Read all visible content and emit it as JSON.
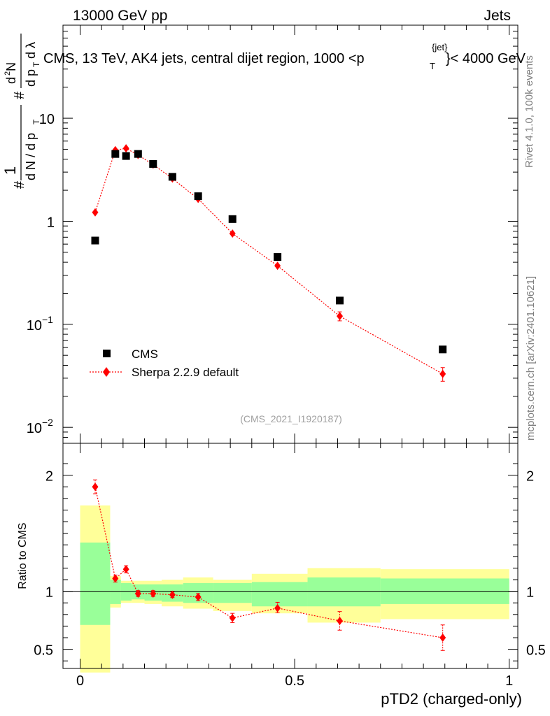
{
  "header": {
    "left_label": "13000 GeV pp",
    "right_label": "Jets",
    "title": "CMS, 13 TeV, AK4 jets, central dijet region, 1000 <p",
    "title_sup": "{jet}",
    "title_sub": "T",
    "title_tail": "}< 4000 GeV"
  },
  "side_labels": {
    "rivet": "Rivet 4.1.0,  100k events",
    "mcplots": "mcplots.cern.ch [arXiv:2401.10621]"
  },
  "watermark": "(CMS_2021_I1920187)",
  "axes": {
    "ylabel_main": "# 1/(dN/dpT) #d²N/(dpT dλ)",
    "ylabel_ratio": "Ratio to CMS",
    "xlabel": "pTD2 (charged-only)"
  },
  "legend": {
    "data": "CMS",
    "mc": "Sherpa 2.2.9 default"
  },
  "colors": {
    "mc": "#ff0000",
    "data": "#000000",
    "band_inner": "#99ff99",
    "band_outer": "#ffff99"
  },
  "chart_data": [
    {
      "type": "scatter",
      "panel": "main",
      "yscale": "log",
      "xlim": [
        -0.04,
        1.02
      ],
      "ylim": [
        0.007,
        80
      ],
      "yticks": [
        {
          "value": 0.01,
          "label": "10",
          "sup": "−2"
        },
        {
          "value": 0.1,
          "label": "10",
          "sup": "−1"
        },
        {
          "value": 1,
          "label": "1",
          "sup": ""
        },
        {
          "value": 10,
          "label": "10",
          "sup": ""
        }
      ],
      "series": [
        {
          "name": "CMS",
          "marker": "square",
          "x": [
            0.035,
            0.082,
            0.107,
            0.135,
            0.17,
            0.215,
            0.275,
            0.355,
            0.46,
            0.605,
            0.845
          ],
          "y": [
            0.65,
            4.5,
            4.3,
            4.5,
            3.6,
            2.7,
            1.75,
            1.05,
            0.45,
            0.17,
            0.057
          ],
          "xlo": [
            0.0,
            0.07,
            0.095,
            0.12,
            0.15,
            0.19,
            0.24,
            0.31,
            0.4,
            0.53,
            0.7
          ],
          "xhi": [
            0.07,
            0.095,
            0.12,
            0.15,
            0.19,
            0.24,
            0.31,
            0.4,
            0.53,
            0.7,
            1.0
          ]
        },
        {
          "name": "Sherpa 2.2.9 default",
          "marker": "diamond",
          "line": "dotted",
          "x": [
            0.035,
            0.082,
            0.107,
            0.135,
            0.17,
            0.215,
            0.275,
            0.355,
            0.46,
            0.605,
            0.845
          ],
          "y": [
            1.22,
            4.9,
            5.1,
            4.4,
            3.55,
            2.6,
            1.65,
            0.76,
            0.37,
            0.12,
            0.033
          ],
          "err": [
            0.05,
            0.15,
            0.15,
            0.12,
            0.1,
            0.08,
            0.05,
            0.04,
            0.02,
            0.012,
            0.005
          ]
        }
      ]
    },
    {
      "type": "scatter",
      "panel": "ratio",
      "xlim": [
        -0.04,
        1.02
      ],
      "ylim": [
        0.335,
        2.275
      ],
      "yticks": [
        {
          "value": 0.5,
          "label": "0.5"
        },
        {
          "value": 1,
          "label": "1"
        },
        {
          "value": 2,
          "label": "2"
        }
      ],
      "xticks": [
        {
          "value": 0,
          "label": "0"
        },
        {
          "value": 0.5,
          "label": "0.5"
        },
        {
          "value": 1,
          "label": "1"
        }
      ],
      "bands": [
        {
          "xlo": 0.0,
          "xhi": 0.07,
          "inner": [
            0.71,
            1.42
          ],
          "outer": [
            0.3,
            1.74
          ]
        },
        {
          "xlo": 0.07,
          "xhi": 0.095,
          "inner": [
            0.89,
            1.1
          ],
          "outer": [
            0.86,
            1.13
          ]
        },
        {
          "xlo": 0.095,
          "xhi": 0.12,
          "inner": [
            0.92,
            1.07
          ],
          "outer": [
            0.9,
            1.09
          ]
        },
        {
          "xlo": 0.12,
          "xhi": 0.15,
          "inner": [
            0.93,
            1.06
          ],
          "outer": [
            0.9,
            1.09
          ]
        },
        {
          "xlo": 0.15,
          "xhi": 0.19,
          "inner": [
            0.92,
            1.06
          ],
          "outer": [
            0.89,
            1.09
          ]
        },
        {
          "xlo": 0.19,
          "xhi": 0.24,
          "inner": [
            0.91,
            1.06
          ],
          "outer": [
            0.87,
            1.1
          ]
        },
        {
          "xlo": 0.24,
          "xhi": 0.31,
          "inner": [
            0.9,
            1.07
          ],
          "outer": [
            0.85,
            1.12
          ]
        },
        {
          "xlo": 0.31,
          "xhi": 0.4,
          "inner": [
            0.9,
            1.07
          ],
          "outer": [
            0.83,
            1.1
          ]
        },
        {
          "xlo": 0.4,
          "xhi": 0.53,
          "inner": [
            0.87,
            1.08
          ],
          "outer": [
            0.81,
            1.15
          ]
        },
        {
          "xlo": 0.53,
          "xhi": 0.7,
          "inner": [
            0.87,
            1.12
          ],
          "outer": [
            0.73,
            1.2
          ]
        },
        {
          "xlo": 0.7,
          "xhi": 1.0,
          "inner": [
            0.89,
            1.11
          ],
          "outer": [
            0.76,
            1.19
          ]
        }
      ],
      "series": [
        {
          "name": "Sherpa 2.2.9 default / CMS",
          "x": [
            0.035,
            0.082,
            0.107,
            0.135,
            0.17,
            0.215,
            0.275,
            0.355,
            0.46,
            0.605,
            0.845
          ],
          "y": [
            1.9,
            1.11,
            1.19,
            0.98,
            0.98,
            0.97,
            0.95,
            0.77,
            0.855,
            0.745,
            0.6
          ],
          "err_lo": [
            0.06,
            0.03,
            0.03,
            0.025,
            0.025,
            0.025,
            0.03,
            0.04,
            0.04,
            0.08,
            0.11
          ],
          "err_hi": [
            0.06,
            0.03,
            0.03,
            0.025,
            0.025,
            0.025,
            0.03,
            0.04,
            0.05,
            0.08,
            0.11
          ]
        }
      ]
    }
  ]
}
